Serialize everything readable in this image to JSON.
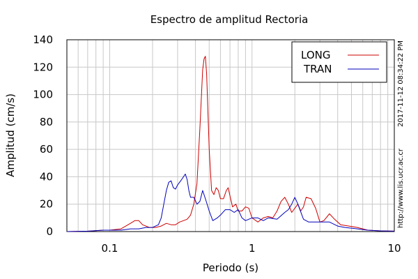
{
  "chart_data": {
    "type": "line",
    "title": "Espectro de amplitud Rectoria",
    "xlabel": "Periodo (s)",
    "ylabel": "Amplitud (cm/s)",
    "x_scale": "log",
    "xlim": [
      0.05,
      10
    ],
    "ylim": [
      0,
      140
    ],
    "x_ticks": [
      {
        "value": 0.1,
        "label": "0.1"
      },
      {
        "value": 1,
        "label": "1"
      },
      {
        "value": 10,
        "label": "10"
      }
    ],
    "y_ticks": [
      {
        "value": 0,
        "label": "0"
      },
      {
        "value": 20,
        "label": "20"
      },
      {
        "value": 40,
        "label": "40"
      },
      {
        "value": 60,
        "label": "60"
      },
      {
        "value": 80,
        "label": "80"
      },
      {
        "value": 100,
        "label": "100"
      },
      {
        "value": 120,
        "label": "120"
      },
      {
        "value": 140,
        "label": "140"
      }
    ],
    "grid": true,
    "legend_position": "top-right",
    "series": [
      {
        "name": "LONG",
        "color": "#cc0000",
        "points": [
          [
            0.05,
            0
          ],
          [
            0.07,
            0.3
          ],
          [
            0.09,
            1
          ],
          [
            0.1,
            1
          ],
          [
            0.12,
            2
          ],
          [
            0.14,
            6
          ],
          [
            0.15,
            8
          ],
          [
            0.16,
            8
          ],
          [
            0.17,
            5
          ],
          [
            0.19,
            3
          ],
          [
            0.21,
            3
          ],
          [
            0.23,
            4
          ],
          [
            0.25,
            6
          ],
          [
            0.27,
            5
          ],
          [
            0.29,
            5
          ],
          [
            0.31,
            7
          ],
          [
            0.33,
            8
          ],
          [
            0.35,
            9
          ],
          [
            0.37,
            12
          ],
          [
            0.39,
            20
          ],
          [
            0.41,
            35
          ],
          [
            0.43,
            75
          ],
          [
            0.45,
            118
          ],
          [
            0.46,
            126
          ],
          [
            0.47,
            128
          ],
          [
            0.48,
            115
          ],
          [
            0.5,
            60
          ],
          [
            0.52,
            30
          ],
          [
            0.54,
            27
          ],
          [
            0.56,
            32
          ],
          [
            0.58,
            30
          ],
          [
            0.6,
            24
          ],
          [
            0.63,
            24
          ],
          [
            0.66,
            30
          ],
          [
            0.68,
            32
          ],
          [
            0.7,
            26
          ],
          [
            0.73,
            18
          ],
          [
            0.77,
            20
          ],
          [
            0.8,
            15
          ],
          [
            0.85,
            15
          ],
          [
            0.9,
            18
          ],
          [
            0.95,
            17
          ],
          [
            1.0,
            10
          ],
          [
            1.1,
            7
          ],
          [
            1.2,
            10
          ],
          [
            1.3,
            11
          ],
          [
            1.4,
            10
          ],
          [
            1.5,
            15
          ],
          [
            1.6,
            22
          ],
          [
            1.7,
            25
          ],
          [
            1.8,
            20
          ],
          [
            1.9,
            14
          ],
          [
            2.0,
            17
          ],
          [
            2.1,
            20
          ],
          [
            2.2,
            15
          ],
          [
            2.3,
            18
          ],
          [
            2.4,
            25
          ],
          [
            2.6,
            24
          ],
          [
            2.8,
            17
          ],
          [
            3.0,
            7
          ],
          [
            3.2,
            8
          ],
          [
            3.5,
            13
          ],
          [
            3.8,
            9
          ],
          [
            4.2,
            5
          ],
          [
            4.8,
            4
          ],
          [
            5.5,
            3
          ],
          [
            6.5,
            1
          ],
          [
            8,
            0.5
          ],
          [
            10,
            0.3
          ]
        ]
      },
      {
        "name": "TRAN",
        "color": "#0000bb",
        "points": [
          [
            0.05,
            0
          ],
          [
            0.07,
            0.3
          ],
          [
            0.09,
            1
          ],
          [
            0.1,
            1
          ],
          [
            0.12,
            1
          ],
          [
            0.14,
            2
          ],
          [
            0.16,
            2
          ],
          [
            0.18,
            3
          ],
          [
            0.2,
            3
          ],
          [
            0.22,
            5
          ],
          [
            0.23,
            10
          ],
          [
            0.24,
            20
          ],
          [
            0.25,
            30
          ],
          [
            0.26,
            36
          ],
          [
            0.27,
            37
          ],
          [
            0.28,
            32
          ],
          [
            0.29,
            31
          ],
          [
            0.3,
            34
          ],
          [
            0.32,
            38
          ],
          [
            0.33,
            40
          ],
          [
            0.34,
            42
          ],
          [
            0.35,
            38
          ],
          [
            0.36,
            30
          ],
          [
            0.37,
            25
          ],
          [
            0.39,
            25
          ],
          [
            0.41,
            20
          ],
          [
            0.43,
            22
          ],
          [
            0.45,
            30
          ],
          [
            0.47,
            24
          ],
          [
            0.5,
            15
          ],
          [
            0.53,
            8
          ],
          [
            0.57,
            10
          ],
          [
            0.6,
            12
          ],
          [
            0.65,
            16
          ],
          [
            0.7,
            16
          ],
          [
            0.75,
            14
          ],
          [
            0.8,
            16
          ],
          [
            0.85,
            10
          ],
          [
            0.9,
            8
          ],
          [
            1.0,
            10
          ],
          [
            1.1,
            10
          ],
          [
            1.2,
            8
          ],
          [
            1.3,
            10
          ],
          [
            1.5,
            9
          ],
          [
            1.7,
            14
          ],
          [
            1.8,
            16
          ],
          [
            1.9,
            20
          ],
          [
            2.0,
            25
          ],
          [
            2.1,
            20
          ],
          [
            2.3,
            9
          ],
          [
            2.5,
            7
          ],
          [
            2.8,
            7
          ],
          [
            3.0,
            7
          ],
          [
            3.5,
            7
          ],
          [
            4.0,
            4
          ],
          [
            4.5,
            3
          ],
          [
            5.5,
            2
          ],
          [
            6.5,
            1
          ],
          [
            8,
            0.5
          ],
          [
            10,
            0.3
          ]
        ]
      }
    ]
  },
  "side_texts": {
    "timestamp": "2017-11-12 08:34:22 PM",
    "url": "http://www.lis.ucr.ac.cr"
  }
}
